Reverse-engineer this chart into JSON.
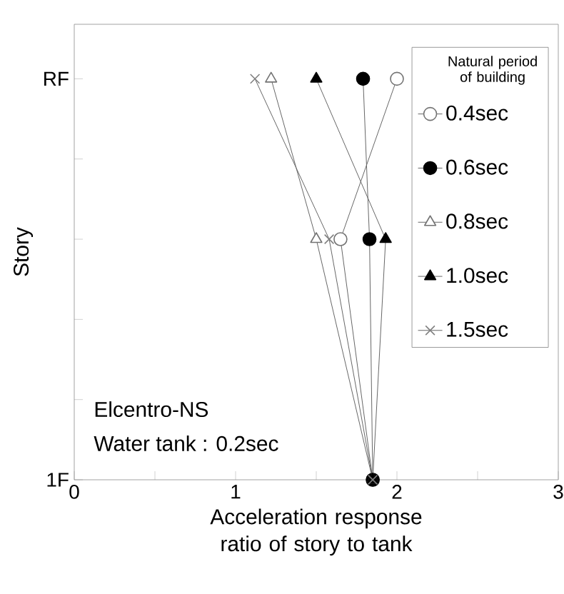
{
  "chart_data": {
    "type": "line",
    "orientation": "horizontal",
    "xlabel": "Acceleration response ratio of story to tank",
    "ylabel": "Story",
    "legend_title": "Natural period of building",
    "legend": "top right",
    "categories": [
      "RF",
      null,
      null,
      null,
      null,
      "1F"
    ],
    "xlim": [
      0,
      3
    ],
    "xticks": [
      0,
      {
        "value": 0.5,
        "label": null
      },
      1,
      {
        "value": 1.5,
        "label": null
      },
      2,
      {
        "value": 2.5,
        "label": null
      },
      3
    ],
    "annotations": [
      "Elcentro-NS",
      "Water tank : 0.2sec"
    ],
    "series": [
      {
        "name": "0.4sec",
        "marker": "circle",
        "color": "#ffffff",
        "values": [
          2.0,
          null,
          1.65,
          null,
          null,
          1.85
        ]
      },
      {
        "name": "0.6sec",
        "marker": "circle",
        "color": "#000000",
        "values": [
          1.79,
          null,
          1.83,
          null,
          null,
          1.85
        ]
      },
      {
        "name": "0.8sec",
        "marker": "triangle",
        "color": "#ffffff",
        "values": [
          1.22,
          null,
          1.5,
          null,
          null,
          1.85
        ]
      },
      {
        "name": "1.0sec",
        "marker": "triangle",
        "color": "#000000",
        "values": [
          1.5,
          null,
          1.93,
          null,
          null,
          1.85
        ]
      },
      {
        "name": "1.5sec",
        "marker": "cross",
        "color": "#808080",
        "values": [
          1.12,
          null,
          1.58,
          null,
          null,
          1.85
        ]
      }
    ]
  }
}
